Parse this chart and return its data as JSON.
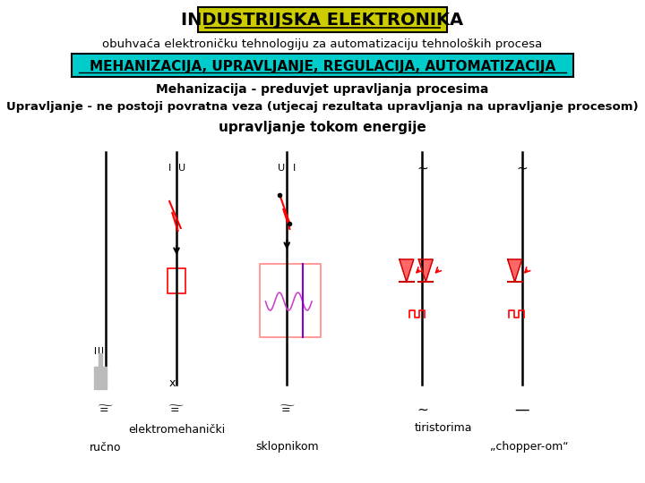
{
  "title": "INDUSTRIJSKA ELEKTRONIKA",
  "title_bg": "#cccc00",
  "subtitle": "obuhvaća elektroničku tehnologiju za automatizaciju tehnoloških procesa",
  "banner_text": "MEHANIZACIJA, UPRAVLJANJE, REGULACIJA, AUTOMATIZACIJA",
  "banner_bg": "#00cccc",
  "line1": "Mehanizacija - preduvjet upravljanja procesima",
  "line2": "Upravljanje - ne postoji povratna veza (utjecaj rezultata upravljanja na upravljanje procesom)",
  "line3": "upravljanje tokom energije",
  "label_rucno": "ručno",
  "label_elektro": "elektromehanički",
  "label_sklopnikom": "sklopnikom",
  "label_tiristorima": "tiristorima",
  "label_chopper": "„chopper-om“",
  "bg_color": "#ffffff"
}
